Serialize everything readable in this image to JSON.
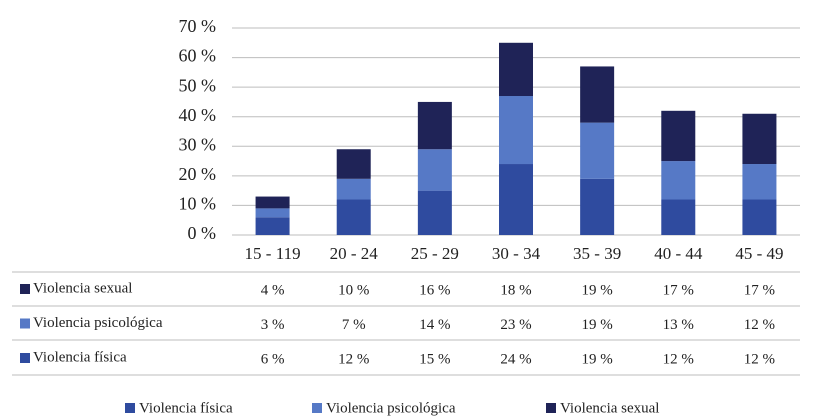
{
  "chart_data": {
    "type": "stacked_bar",
    "categories": [
      "15 - 119",
      "20 - 24",
      "25 - 29",
      "30 - 34",
      "35 - 39",
      "40 - 44",
      "45 - 49"
    ],
    "series": [
      {
        "name": "Violencia física",
        "color": "#2f4b9f",
        "values": [
          6,
          12,
          15,
          24,
          19,
          12,
          12
        ],
        "value_labels": [
          "6 %",
          "12 %",
          "15 %",
          "24 %",
          "19 %",
          "12 %",
          "12 %"
        ]
      },
      {
        "name": "Violencia psicológica",
        "color": "#5679c6",
        "values": [
          3,
          7,
          14,
          23,
          19,
          13,
          12
        ],
        "value_labels": [
          "3 %",
          "7 %",
          "14 %",
          "23 %",
          "19 %",
          "13 %",
          "12 %"
        ]
      },
      {
        "name": "Violencia sexual",
        "color": "#1f2357",
        "values": [
          4,
          10,
          16,
          18,
          19,
          17,
          17
        ],
        "value_labels": [
          "4 %",
          "10 %",
          "16 %",
          "18 %",
          "19 %",
          "17 %",
          "17 %"
        ]
      }
    ],
    "ylim": [
      0,
      70
    ],
    "yticks": [
      {
        "value": 0,
        "label": "0 %"
      },
      {
        "value": 10,
        "label": "10 %"
      },
      {
        "value": 20,
        "label": "20 %"
      },
      {
        "value": 30,
        "label": "30 %"
      },
      {
        "value": 40,
        "label": "40 %"
      },
      {
        "value": 50,
        "label": "50 %"
      },
      {
        "value": 60,
        "label": "60 %"
      },
      {
        "value": 70,
        "label": "70 %"
      }
    ],
    "grid": true
  }
}
